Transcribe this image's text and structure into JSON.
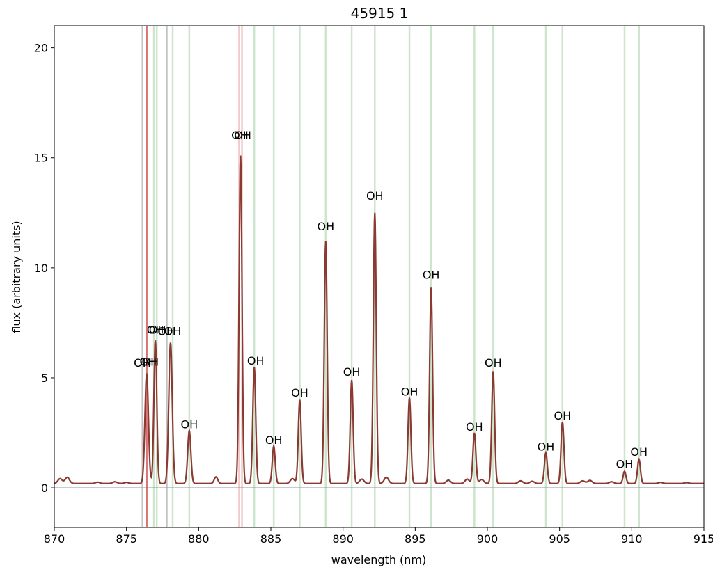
{
  "chart_data": {
    "type": "line",
    "title": "45915 1",
    "xlabel": "wavelength (nm)",
    "ylabel": "flux (arbitrary units)",
    "xlim": [
      870,
      915
    ],
    "ylim": [
      -1.8,
      21
    ],
    "xticks": [
      "870",
      "875",
      "880",
      "885",
      "890",
      "895",
      "900",
      "905",
      "910",
      "915"
    ],
    "yticks": [
      "0",
      "5",
      "10",
      "15",
      "20"
    ],
    "grid": false,
    "series_color": "#8b3a32",
    "baseline": 0.2,
    "peaks": [
      {
        "x": 876.4,
        "y": 5.2,
        "w": 0.12
      },
      {
        "x": 877.0,
        "y": 6.7,
        "w": 0.1
      },
      {
        "x": 878.05,
        "y": 6.6,
        "w": 0.12
      },
      {
        "x": 879.35,
        "y": 2.6,
        "w": 0.11
      },
      {
        "x": 881.2,
        "y": 0.5,
        "w": 0.12
      },
      {
        "x": 882.9,
        "y": 15.1,
        "w": 0.1
      },
      {
        "x": 883.85,
        "y": 5.5,
        "w": 0.1
      },
      {
        "x": 885.2,
        "y": 1.9,
        "w": 0.1
      },
      {
        "x": 887.0,
        "y": 4.0,
        "w": 0.1
      },
      {
        "x": 888.8,
        "y": 11.2,
        "w": 0.1
      },
      {
        "x": 890.6,
        "y": 4.9,
        "w": 0.1
      },
      {
        "x": 892.2,
        "y": 12.5,
        "w": 0.1
      },
      {
        "x": 894.6,
        "y": 4.1,
        "w": 0.1
      },
      {
        "x": 896.1,
        "y": 9.1,
        "w": 0.1
      },
      {
        "x": 899.1,
        "y": 2.5,
        "w": 0.1
      },
      {
        "x": 900.4,
        "y": 5.3,
        "w": 0.1
      },
      {
        "x": 904.05,
        "y": 1.6,
        "w": 0.1
      },
      {
        "x": 905.2,
        "y": 3.0,
        "w": 0.1
      },
      {
        "x": 909.5,
        "y": 0.75,
        "w": 0.1
      },
      {
        "x": 910.5,
        "y": 1.3,
        "w": 0.1
      }
    ],
    "green_lines": [
      876.9,
      877.1,
      878.2,
      879.35,
      883.85,
      885.2,
      887.0,
      888.8,
      890.6,
      892.2,
      894.6,
      896.1,
      899.1,
      900.4,
      904.05,
      905.2,
      909.5,
      910.5
    ],
    "red_lines": [
      876.4,
      882.8,
      883.0
    ],
    "gray_lines": [
      876.1,
      877.8
    ],
    "annotations": [
      {
        "text": "OH",
        "x": 876.1,
        "y": 5.5
      },
      {
        "text": "OH",
        "x": 876.5,
        "y": 5.55
      },
      {
        "text": "OH",
        "x": 876.65,
        "y": 5.55
      },
      {
        "text": "OH",
        "x": 877.0,
        "y": 7.0
      },
      {
        "text": "OH",
        "x": 877.15,
        "y": 7.0
      },
      {
        "text": "OH",
        "x": 877.75,
        "y": 6.95
      },
      {
        "text": "OH",
        "x": 878.2,
        "y": 6.95
      },
      {
        "text": "OH",
        "x": 879.35,
        "y": 2.7
      },
      {
        "text": "OH",
        "x": 882.85,
        "y": 15.85
      },
      {
        "text": "OH",
        "x": 883.05,
        "y": 15.85
      },
      {
        "text": "OH",
        "x": 883.95,
        "y": 5.6
      },
      {
        "text": "OH",
        "x": 885.2,
        "y": 2.0
      },
      {
        "text": "OH",
        "x": 887.0,
        "y": 4.15
      },
      {
        "text": "OH",
        "x": 888.8,
        "y": 11.7
      },
      {
        "text": "OH",
        "x": 890.6,
        "y": 5.1
      },
      {
        "text": "OH",
        "x": 892.2,
        "y": 13.1
      },
      {
        "text": "OH",
        "x": 894.6,
        "y": 4.2
      },
      {
        "text": "OH",
        "x": 896.1,
        "y": 9.5
      },
      {
        "text": "OH",
        "x": 899.1,
        "y": 2.6
      },
      {
        "text": "OH",
        "x": 900.4,
        "y": 5.5
      },
      {
        "text": "OH",
        "x": 904.05,
        "y": 1.7
      },
      {
        "text": "OH",
        "x": 905.2,
        "y": 3.1
      },
      {
        "text": "OH",
        "x": 909.5,
        "y": 0.9
      },
      {
        "text": "OH",
        "x": 910.5,
        "y": 1.45
      }
    ]
  }
}
